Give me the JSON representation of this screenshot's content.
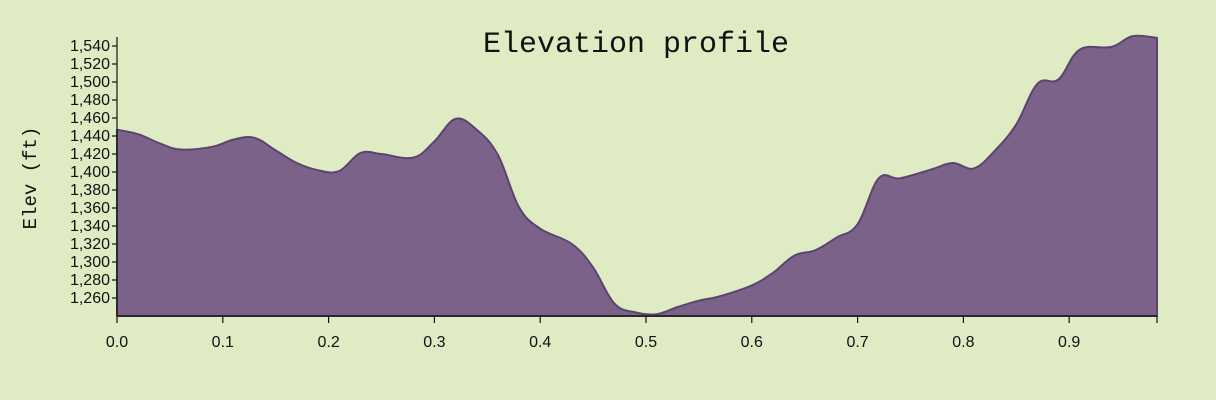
{
  "chart_data": {
    "type": "area",
    "title": "Elevation profile",
    "xlabel": "",
    "ylabel": "Elev (ft)",
    "xlim": [
      0,
      0.983
    ],
    "ylim": [
      1240,
      1550
    ],
    "grid": false,
    "colors": {
      "fill": "#7b6289",
      "stroke": "#5c4470",
      "background": "#dfebc3"
    },
    "x_ticks": [
      "0.0",
      "0.1",
      "0.2",
      "0.3",
      "0.4",
      "0.5",
      "0.6",
      "0.7",
      "0.8",
      "0.9"
    ],
    "y_ticks": [
      "1,260",
      "1,280",
      "1,300",
      "1,320",
      "1,340",
      "1,360",
      "1,380",
      "1,400",
      "1,420",
      "1,440",
      "1,460",
      "1,480",
      "1,500",
      "1,520",
      "1,540"
    ],
    "x": [
      0.0,
      0.02,
      0.04,
      0.06,
      0.09,
      0.11,
      0.13,
      0.15,
      0.17,
      0.19,
      0.21,
      0.23,
      0.25,
      0.28,
      0.3,
      0.32,
      0.34,
      0.36,
      0.38,
      0.4,
      0.43,
      0.45,
      0.47,
      0.49,
      0.51,
      0.53,
      0.55,
      0.57,
      0.6,
      0.62,
      0.64,
      0.66,
      0.68,
      0.7,
      0.72,
      0.74,
      0.77,
      0.79,
      0.81,
      0.83,
      0.85,
      0.87,
      0.89,
      0.91,
      0.94,
      0.96,
      0.983
    ],
    "values": [
      1447,
      1442,
      1432,
      1425,
      1428,
      1436,
      1438,
      1424,
      1410,
      1402,
      1401,
      1421,
      1420,
      1416,
      1434,
      1459,
      1447,
      1419,
      1361,
      1337,
      1320,
      1294,
      1254,
      1244,
      1242,
      1250,
      1257,
      1262,
      1274,
      1288,
      1307,
      1313,
      1327,
      1342,
      1393,
      1393,
      1403,
      1410,
      1404,
      1424,
      1453,
      1498,
      1503,
      1536,
      1539,
      1551,
      1549
    ]
  }
}
